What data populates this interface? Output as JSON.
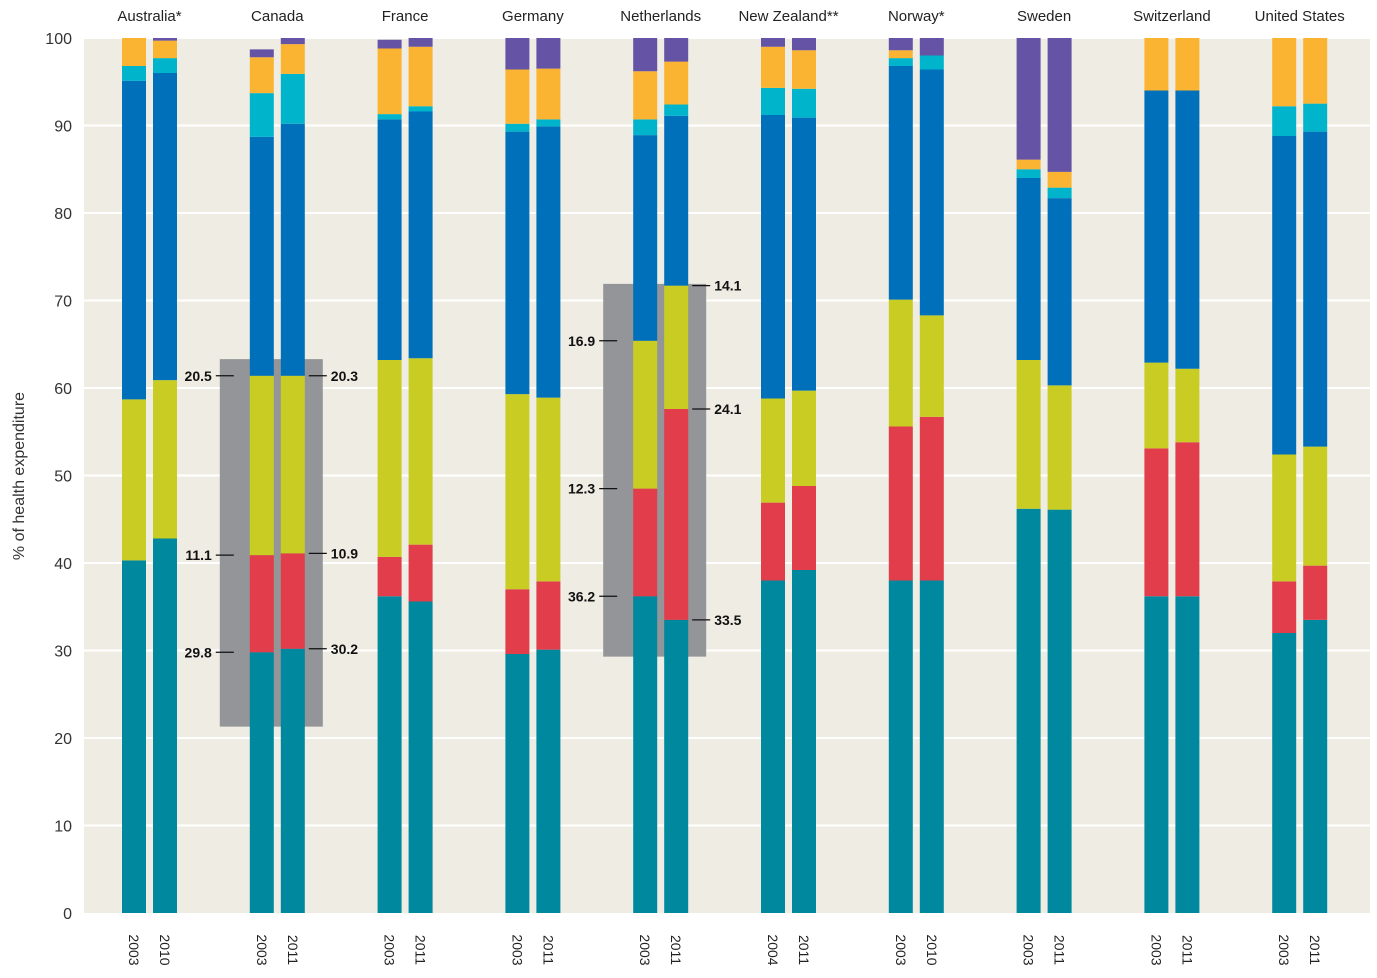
{
  "chart_data": {
    "type": "bar",
    "stacked": true,
    "ylabel": "% of health expenditure",
    "ylim": [
      0,
      100
    ],
    "yticks": [
      0,
      10,
      20,
      30,
      40,
      50,
      60,
      70,
      80,
      90,
      100
    ],
    "grid": true,
    "segment_colors": [
      "#00889e",
      "#e23d4b",
      "#c8cc23",
      "#0170bb",
      "#00b4cc",
      "#fbb431",
      "#6553a5"
    ],
    "countries": [
      {
        "name": "Australia*",
        "highlight": false,
        "bars": [
          {
            "year": "2003",
            "values": [
              40.3,
              0,
              18.4,
              36.4,
              1.7,
              3.2,
              0
            ]
          },
          {
            "year": "2010",
            "values": [
              42.8,
              0,
              18.1,
              35.1,
              1.7,
              2.0,
              0.3
            ]
          }
        ]
      },
      {
        "name": "Canada",
        "highlight": true,
        "bars": [
          {
            "year": "2003",
            "values": [
              29.8,
              11.1,
              20.5,
              27.3,
              5.0,
              4.1,
              0.9
            ]
          },
          {
            "year": "2011",
            "values": [
              30.2,
              10.9,
              20.3,
              28.8,
              5.7,
              3.4,
              0.9
            ]
          }
        ]
      },
      {
        "name": "France",
        "highlight": false,
        "bars": [
          {
            "year": "2003",
            "values": [
              36.2,
              4.5,
              22.5,
              27.5,
              0.6,
              7.5,
              1.0
            ]
          },
          {
            "year": "2011",
            "values": [
              35.6,
              6.5,
              21.3,
              28.2,
              0.6,
              6.8,
              1.0
            ]
          }
        ]
      },
      {
        "name": "Germany",
        "highlight": false,
        "bars": [
          {
            "year": "2003",
            "values": [
              29.6,
              7.4,
              22.3,
              30.0,
              0.9,
              6.2,
              3.6
            ]
          },
          {
            "year": "2011",
            "values": [
              30.1,
              7.8,
              21.0,
              31.0,
              0.8,
              5.8,
              3.5
            ]
          }
        ]
      },
      {
        "name": "Netherlands",
        "highlight": false,
        "bars": [
          {
            "year": "2003",
            "values": [
              36.2,
              12.3,
              16.9,
              23.5,
              1.8,
              5.5,
              3.8
            ]
          },
          {
            "year": "2011",
            "values": [
              33.5,
              24.1,
              14.1,
              19.4,
              1.3,
              4.9,
              2.7
            ]
          }
        ]
      },
      {
        "name": "New Zealand**",
        "highlight": false,
        "bars": [
          {
            "year": "2004",
            "values": [
              38.0,
              8.9,
              11.9,
              32.4,
              3.1,
              4.7,
              1.0
            ]
          },
          {
            "year": "2011",
            "values": [
              39.2,
              9.6,
              10.9,
              31.2,
              3.3,
              4.4,
              1.4
            ]
          }
        ]
      },
      {
        "name": "Norway*",
        "highlight": false,
        "bars": [
          {
            "year": "2003",
            "values": [
              38.0,
              17.6,
              14.5,
              26.7,
              0.9,
              0.9,
              1.6
            ]
          },
          {
            "year": "2010",
            "values": [
              38.0,
              18.7,
              11.6,
              28.1,
              1.6,
              0,
              2.0
            ]
          }
        ]
      },
      {
        "name": "Sweden",
        "highlight": false,
        "bars": [
          {
            "year": "2003",
            "values": [
              46.2,
              0,
              17.0,
              20.8,
              1.0,
              1.1,
              13.9
            ]
          },
          {
            "year": "2011",
            "values": [
              46.1,
              0,
              14.2,
              21.4,
              1.2,
              1.8,
              15.3
            ]
          }
        ]
      },
      {
        "name": "Switzerland",
        "highlight": false,
        "bars": [
          {
            "year": "2003",
            "values": [
              36.2,
              16.9,
              9.8,
              31.1,
              0,
              6.0,
              0
            ]
          },
          {
            "year": "2011",
            "values": [
              36.2,
              17.6,
              8.4,
              31.8,
              0,
              6.0,
              0
            ]
          }
        ]
      },
      {
        "name": "United States",
        "highlight": false,
        "bars": [
          {
            "year": "2003",
            "values": [
              32.0,
              5.9,
              14.5,
              36.4,
              3.4,
              7.8,
              0
            ]
          },
          {
            "year": "2011",
            "values": [
              33.5,
              6.2,
              13.6,
              36.0,
              3.2,
              7.5,
              0
            ]
          }
        ]
      }
    ],
    "annotations": [
      {
        "country": "Canada",
        "left": [
          {
            "value": 61.4,
            "label": "20.5"
          },
          {
            "value": 40.9,
            "label": "11.1"
          },
          {
            "value": 29.8,
            "label": "29.8"
          }
        ],
        "right": [
          {
            "value": 61.4,
            "label": "20.3"
          },
          {
            "value": 41.1,
            "label": "10.9"
          },
          {
            "value": 30.2,
            "label": "30.2"
          }
        ],
        "box_range": [
          21.3,
          63.3
        ]
      },
      {
        "country": "Netherlands",
        "left": [
          {
            "value": 65.4,
            "label": "16.9"
          },
          {
            "value": 48.5,
            "label": "12.3"
          },
          {
            "value": 36.2,
            "label": "36.2"
          }
        ],
        "right": [
          {
            "value": 71.7,
            "label": "14.1"
          },
          {
            "value": 57.6,
            "label": "24.1"
          },
          {
            "value": 33.5,
            "label": "33.5"
          }
        ],
        "box_range": [
          29.3,
          71.9
        ]
      }
    ]
  }
}
